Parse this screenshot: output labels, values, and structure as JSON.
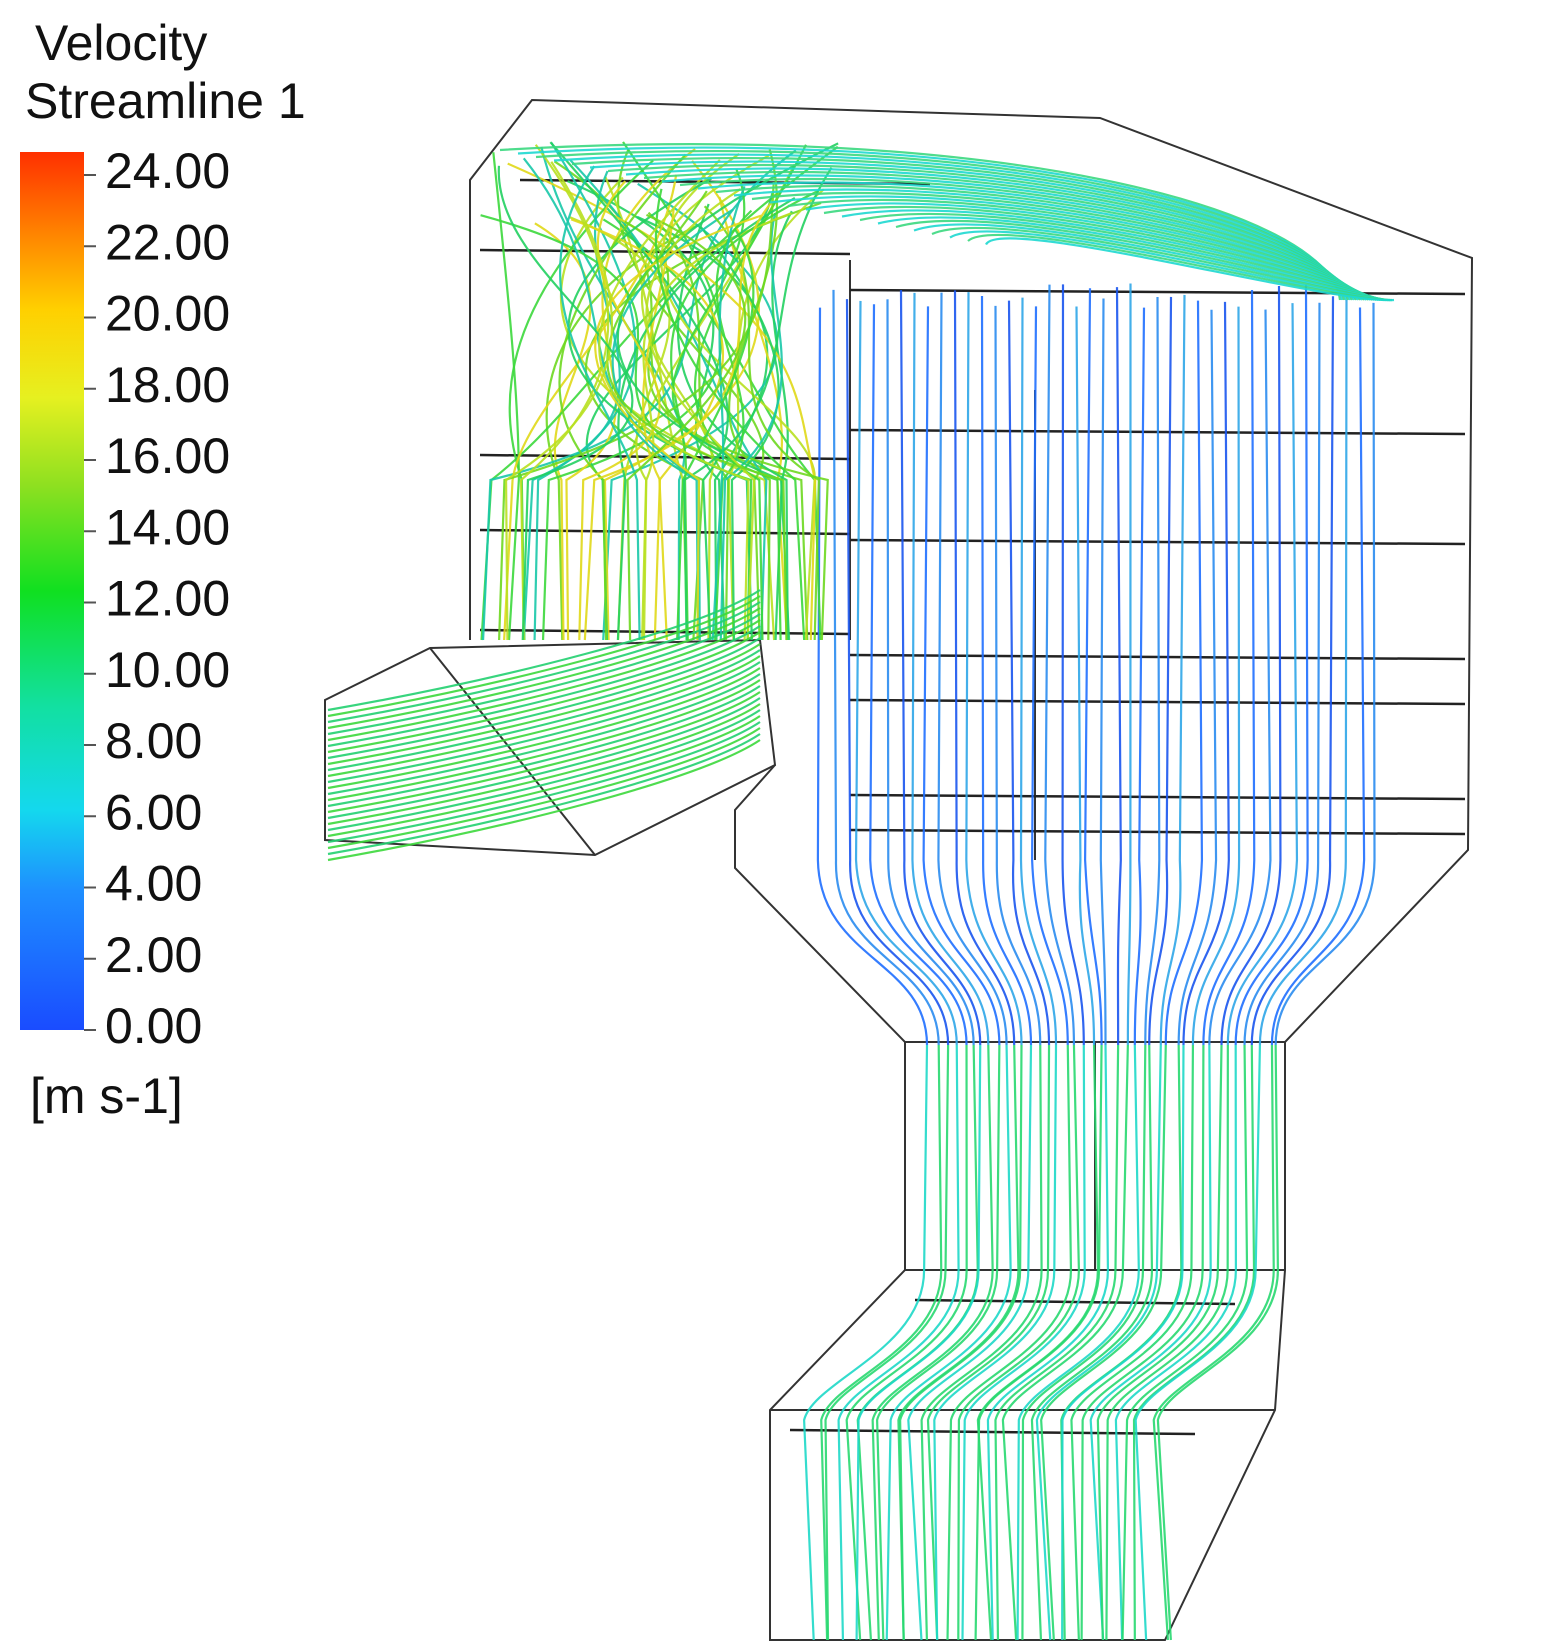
{
  "legend": {
    "title": "Velocity",
    "subtitle": "Streamline 1",
    "unit": "[m s-1]",
    "range": [
      0,
      24
    ],
    "ticks": [
      {
        "value": 24,
        "label": "24.00"
      },
      {
        "value": 22,
        "label": "22.00"
      },
      {
        "value": 20,
        "label": "20.00"
      },
      {
        "value": 18,
        "label": "18.00"
      },
      {
        "value": 16,
        "label": "16.00"
      },
      {
        "value": 14,
        "label": "14.00"
      },
      {
        "value": 12,
        "label": "12.00"
      },
      {
        "value": 10,
        "label": "10.00"
      },
      {
        "value": 8,
        "label": "8.00"
      },
      {
        "value": 6,
        "label": "6.00"
      },
      {
        "value": 4,
        "label": "4.00"
      },
      {
        "value": 2,
        "label": "2.00"
      },
      {
        "value": 0,
        "label": "0.00"
      }
    ]
  }
}
